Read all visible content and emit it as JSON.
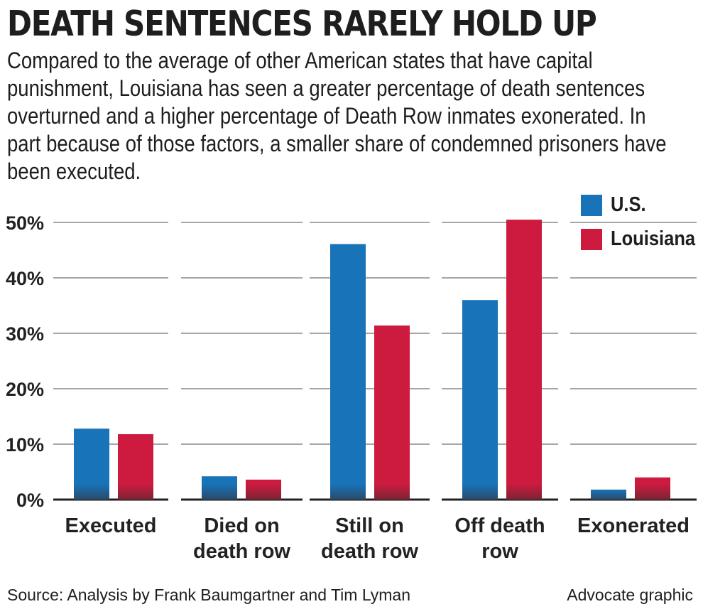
{
  "title": "DEATH SENTENCES RARELY HOLD UP",
  "subtitle": "Compared to the average of other American states that have capital punishment, Louisiana has seen a greater percentage of death sentences overturned and a higher percentage of Death Row inmates exonerated. In part because of those factors, a smaller share of condemned prisoners have been executed.",
  "source": "Source: Analysis by Frank Baumgartner and Tim Lyman",
  "credit": "Advocate graphic",
  "colors": {
    "us": "#1873b8",
    "louisiana": "#cc1b3f",
    "grid": "#a6a6a6",
    "axis": "#222222"
  },
  "chart_data": {
    "type": "bar",
    "categories": [
      [
        "Executed"
      ],
      [
        "Died on",
        "death row"
      ],
      [
        "Still on",
        "death row"
      ],
      [
        "Off death",
        "row"
      ],
      [
        "Exonerated"
      ]
    ],
    "series": [
      {
        "name": "U.S.",
        "values": [
          12.8,
          4.2,
          46.1,
          36.0,
          1.8
        ]
      },
      {
        "name": "Louisiana",
        "values": [
          11.8,
          3.6,
          31.4,
          50.5,
          4.0
        ]
      }
    ],
    "yticks": [
      "0%",
      "10%",
      "20%",
      "30%",
      "40%",
      "50%"
    ],
    "ylim": [
      0,
      52
    ],
    "grid": true,
    "legend": "top-right"
  }
}
